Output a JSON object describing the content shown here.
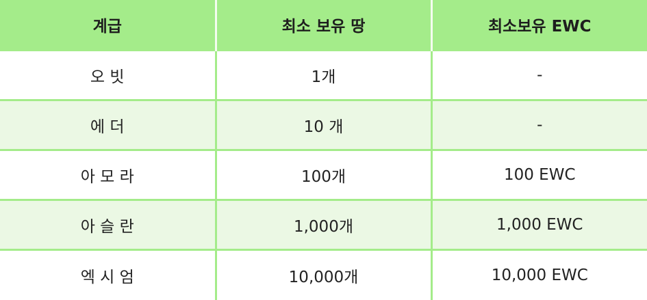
{
  "header": {
    "col1": "계급",
    "col2": "최소 보유 땅",
    "col3": "최소보유 EWC"
  },
  "rows": [
    {
      "tier": "오 빗",
      "min_land": "1개",
      "min_ewc": "-"
    },
    {
      "tier": "에 더",
      "min_land": "10 개",
      "min_ewc": "-"
    },
    {
      "tier": "아 모 라",
      "min_land": "100개",
      "min_ewc": "100 EWC"
    },
    {
      "tier": "아 슬 란",
      "min_land": "1,000개",
      "min_ewc": "1,000 EWC"
    },
    {
      "tier": "엑 시 엄",
      "min_land": "10,000개",
      "min_ewc": "10,000 EWC"
    }
  ],
  "colors": {
    "header_bg": "#a4ec8a",
    "row_alt_bg": "#ebf8e4",
    "grid_line": "#a4ec8a"
  }
}
